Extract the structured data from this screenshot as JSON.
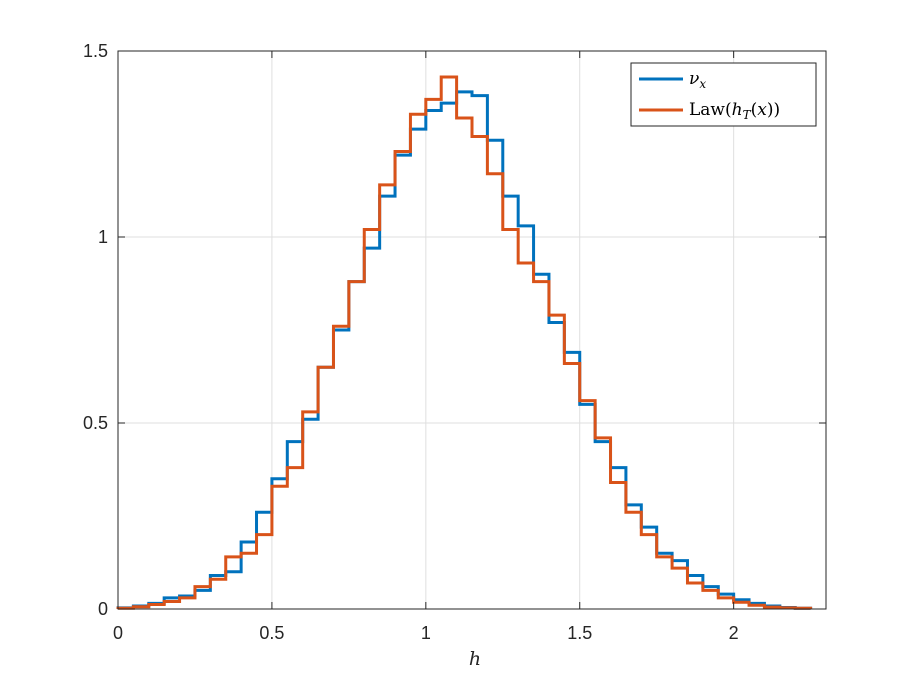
{
  "chart_data": {
    "type": "step-histogram",
    "xlabel": "h",
    "ylabel": "",
    "xlim": [
      0,
      2.3
    ],
    "ylim": [
      0,
      1.5
    ],
    "xticks": [
      0,
      0.5,
      1,
      1.5,
      2
    ],
    "xtick_labels": [
      "0",
      "0.5",
      "1",
      "1.5",
      "2"
    ],
    "yticks": [
      0,
      0.5,
      1,
      1.5
    ],
    "ytick_labels": [
      "0",
      "0.5",
      "1",
      "1.5"
    ],
    "grid": true,
    "legend_position": "top-right",
    "bin_width": 0.05,
    "series": [
      {
        "name": "ν_x",
        "color": "#0072BD",
        "edges": [
          0.0,
          0.05,
          0.1,
          0.15,
          0.2,
          0.25,
          0.3,
          0.35,
          0.4,
          0.45,
          0.5,
          0.55,
          0.6,
          0.65,
          0.7,
          0.75,
          0.8,
          0.85,
          0.9,
          0.95,
          1.0,
          1.05,
          1.1,
          1.15,
          1.2,
          1.25,
          1.3,
          1.35,
          1.4,
          1.45,
          1.5,
          1.55,
          1.6,
          1.65,
          1.7,
          1.75,
          1.8,
          1.85,
          1.9,
          1.95,
          2.0,
          2.05,
          2.1,
          2.15,
          2.2
        ],
        "values": [
          0.003,
          0.008,
          0.015,
          0.03,
          0.035,
          0.05,
          0.09,
          0.1,
          0.18,
          0.26,
          0.35,
          0.45,
          0.51,
          0.65,
          0.75,
          0.88,
          0.97,
          1.11,
          1.22,
          1.29,
          1.34,
          1.36,
          1.39,
          1.38,
          1.26,
          1.11,
          1.03,
          0.9,
          0.77,
          0.69,
          0.55,
          0.45,
          0.38,
          0.28,
          0.22,
          0.15,
          0.13,
          0.09,
          0.06,
          0.04,
          0.025,
          0.015,
          0.008,
          0.004,
          0.002
        ]
      },
      {
        "name": "Law(h_T(x))",
        "color": "#D95319",
        "edges": [
          0.0,
          0.05,
          0.1,
          0.15,
          0.2,
          0.25,
          0.3,
          0.35,
          0.4,
          0.45,
          0.5,
          0.55,
          0.6,
          0.65,
          0.7,
          0.75,
          0.8,
          0.85,
          0.9,
          0.95,
          1.0,
          1.05,
          1.1,
          1.15,
          1.2,
          1.25,
          1.3,
          1.35,
          1.4,
          1.45,
          1.5,
          1.55,
          1.6,
          1.65,
          1.7,
          1.75,
          1.8,
          1.85,
          1.9,
          1.95,
          2.0,
          2.05,
          2.1,
          2.15,
          2.2
        ],
        "values": [
          0.002,
          0.006,
          0.012,
          0.02,
          0.03,
          0.06,
          0.08,
          0.14,
          0.15,
          0.2,
          0.33,
          0.38,
          0.53,
          0.65,
          0.76,
          0.88,
          1.02,
          1.14,
          1.23,
          1.33,
          1.37,
          1.43,
          1.32,
          1.27,
          1.17,
          1.02,
          0.93,
          0.88,
          0.79,
          0.66,
          0.56,
          0.46,
          0.34,
          0.26,
          0.2,
          0.14,
          0.11,
          0.07,
          0.05,
          0.03,
          0.018,
          0.01,
          0.005,
          0.003,
          0.002
        ]
      }
    ]
  }
}
